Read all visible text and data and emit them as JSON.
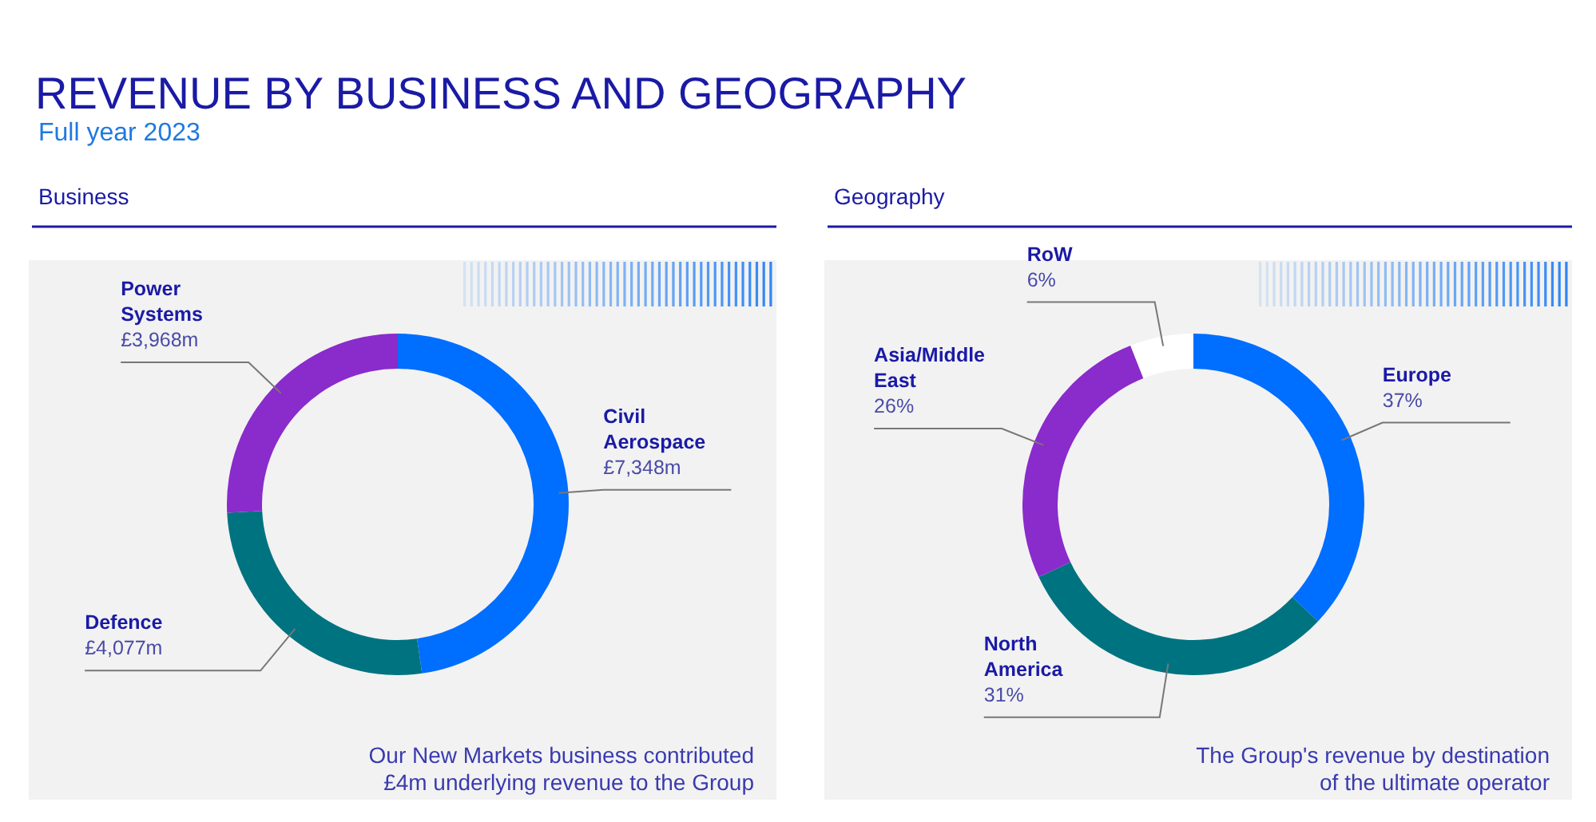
{
  "chart_data": [
    {
      "type": "other",
      "title": "REVENUE BY BUSINESS AND GEOGRAPHY",
      "subtitle": "Full year 2023"
    },
    {
      "type": "donut",
      "title": "Business",
      "categories": [
        "Civil Aerospace",
        "Defence",
        "Power Systems"
      ],
      "values": [
        7348,
        4077,
        3968
      ],
      "value_labels": [
        "£7,348m",
        "£4,077m",
        "£3,968m"
      ],
      "colors": [
        "#006eff",
        "#007380",
        "#8a2bcc"
      ],
      "annotations": [
        "Our New Markets business contributed £4m underlying revenue to the Group"
      ]
    },
    {
      "type": "donut",
      "title": "Geography",
      "categories": [
        "Europe",
        "North America",
        "Asia/Middle East",
        "RoW"
      ],
      "values": [
        37,
        31,
        26,
        6
      ],
      "value_labels": [
        "37%",
        "31%",
        "26%",
        "6%"
      ],
      "colors": [
        "#006eff",
        "#007380",
        "#8a2bcc",
        "#ffffff"
      ],
      "annotations": [
        "The Group's revenue by destination of the ultimate operator"
      ]
    }
  ]
}
